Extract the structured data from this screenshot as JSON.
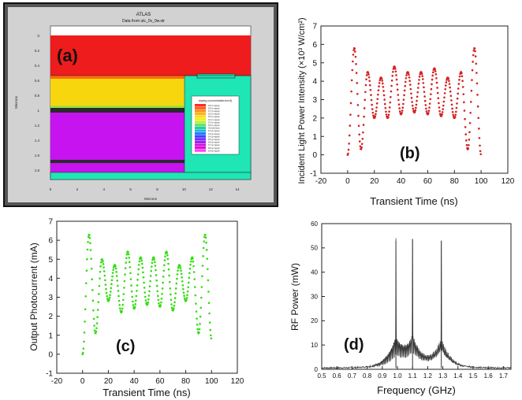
{
  "panel_a": {
    "label": "(a)",
    "title": "ATLAS",
    "subtitle": "Data from utc_0v_0w.str",
    "xlabel": "Microns",
    "ylabel": "Microns",
    "xticks": [
      "0",
      "2",
      "4",
      "6",
      "8",
      "10",
      "12",
      "14"
    ],
    "yticks": [
      "0",
      "0.2",
      "0.4",
      "0.6",
      "0.8",
      "1",
      "1.2",
      "1.4",
      "1.6",
      "1.8"
    ],
    "legend_title": "doping (concentration/cm3)",
    "legend_entries": [
      "19 (n-type)",
      "18 (n-type)",
      "17 (n-type)",
      "16 (n-type)",
      "15 (n-type)",
      "14 (n-type)",
      "13 (n-type)",
      "12 (n-type)",
      "0 (intrinsic)",
      "12 (p-type)",
      "13 (p-type)",
      "14 (p-type)",
      "15 (p-type)",
      "16 (p-type)",
      "17 (p-type)",
      "18 (p-type)",
      "19 (p-type)"
    ],
    "legend_colors": [
      "#ff2a2a",
      "#ff5a1e",
      "#ff8c1a",
      "#ffb31a",
      "#ffd91a",
      "#f0f020",
      "#b4f040",
      "#60e060",
      "#20d0a0",
      "#20b4e0",
      "#2080ff",
      "#4040ff",
      "#7030ff",
      "#a020f0",
      "#c810e0",
      "#e010d0",
      "#ff40ff"
    ],
    "colors": {
      "red_layer": "#ee1c1c",
      "yellow_layer": "#f7d60e",
      "purple_layer": "#c613ef",
      "teal_region": "#1ee6b5",
      "frame_bg": "#c8c8c8",
      "outer_frame": "#222222"
    }
  },
  "panel_b": {
    "label": "(b)",
    "xlabel": "Transient Time (ns)",
    "ylabel": "Incident Light Power Intensity (×10³ W/cm²)",
    "xticks": [
      "-20",
      "0",
      "20",
      "40",
      "60",
      "80",
      "100",
      "120"
    ],
    "yticks": [
      "-1",
      "0",
      "1",
      "2",
      "3",
      "4",
      "5",
      "6",
      "7"
    ]
  },
  "panel_c": {
    "label": "(c)",
    "xlabel": "Transient Time (ns)",
    "ylabel": "Output Photocurrent (mA)",
    "xticks": [
      "-20",
      "0",
      "20",
      "40",
      "60",
      "80",
      "100",
      "120"
    ],
    "yticks": [
      "-1",
      "0",
      "1",
      "2",
      "3",
      "4",
      "5",
      "6",
      "7"
    ]
  },
  "panel_d": {
    "label": "(d)",
    "xlabel": "Frequency (GHz)",
    "ylabel": "RF Power (mW)",
    "xticks": [
      "0.5",
      "0.6",
      "0.7",
      "0.8",
      "0.9",
      "1.0",
      "1.1",
      "1.2",
      "1.3",
      "1.4",
      "1.5",
      "1.6",
      "1.7"
    ],
    "yticks": [
      "0",
      "10",
      "20",
      "30",
      "40",
      "50",
      "60"
    ]
  },
  "chart_data": [
    {
      "type": "scatter",
      "panel": "b",
      "color": "#d42020",
      "xlim": [
        -20,
        120
      ],
      "ylim": [
        -1,
        7
      ],
      "x": [
        0,
        5,
        10,
        15,
        20,
        25,
        30,
        35,
        40,
        45,
        50,
        55,
        60,
        65,
        70,
        75,
        80,
        85,
        90,
        95,
        100
      ],
      "y": [
        0.0,
        5.8,
        0.3,
        4.5,
        2.0,
        4.2,
        2.0,
        4.8,
        2.2,
        4.5,
        2.3,
        4.5,
        2.2,
        4.7,
        2.1,
        4.2,
        2.0,
        4.5,
        0.3,
        5.8,
        0.0
      ],
      "ylabel": "Incident Light Power Intensity (×10³ W/cm²)",
      "xlabel": "Transient Time (ns)"
    },
    {
      "type": "scatter",
      "panel": "c",
      "color": "#33dd11",
      "xlim": [
        -20,
        120
      ],
      "ylim": [
        -1,
        7
      ],
      "x": [
        0,
        5,
        10,
        15,
        20,
        25,
        30,
        35,
        40,
        45,
        50,
        55,
        60,
        65,
        70,
        75,
        80,
        85,
        90,
        95,
        100
      ],
      "y": [
        0.0,
        6.3,
        1.1,
        5.0,
        2.8,
        4.7,
        2.2,
        5.4,
        2.4,
        5.1,
        2.6,
        5.1,
        2.5,
        5.4,
        2.3,
        4.7,
        2.8,
        5.1,
        1.1,
        6.3,
        0.8
      ],
      "ylabel": "Output Photocurrent (mA)",
      "xlabel": "Transient Time (ns)"
    },
    {
      "type": "line",
      "panel": "d",
      "color": "#333333",
      "xlim": [
        0.5,
        1.75
      ],
      "ylim": [
        0,
        60
      ],
      "peaks": [
        {
          "x": 0.99,
          "y": 53
        },
        {
          "x": 1.1,
          "y": 53.5
        },
        {
          "x": 1.29,
          "y": 53
        }
      ],
      "ylabel": "RF Power (mW)",
      "xlabel": "Frequency (GHz)"
    }
  ]
}
